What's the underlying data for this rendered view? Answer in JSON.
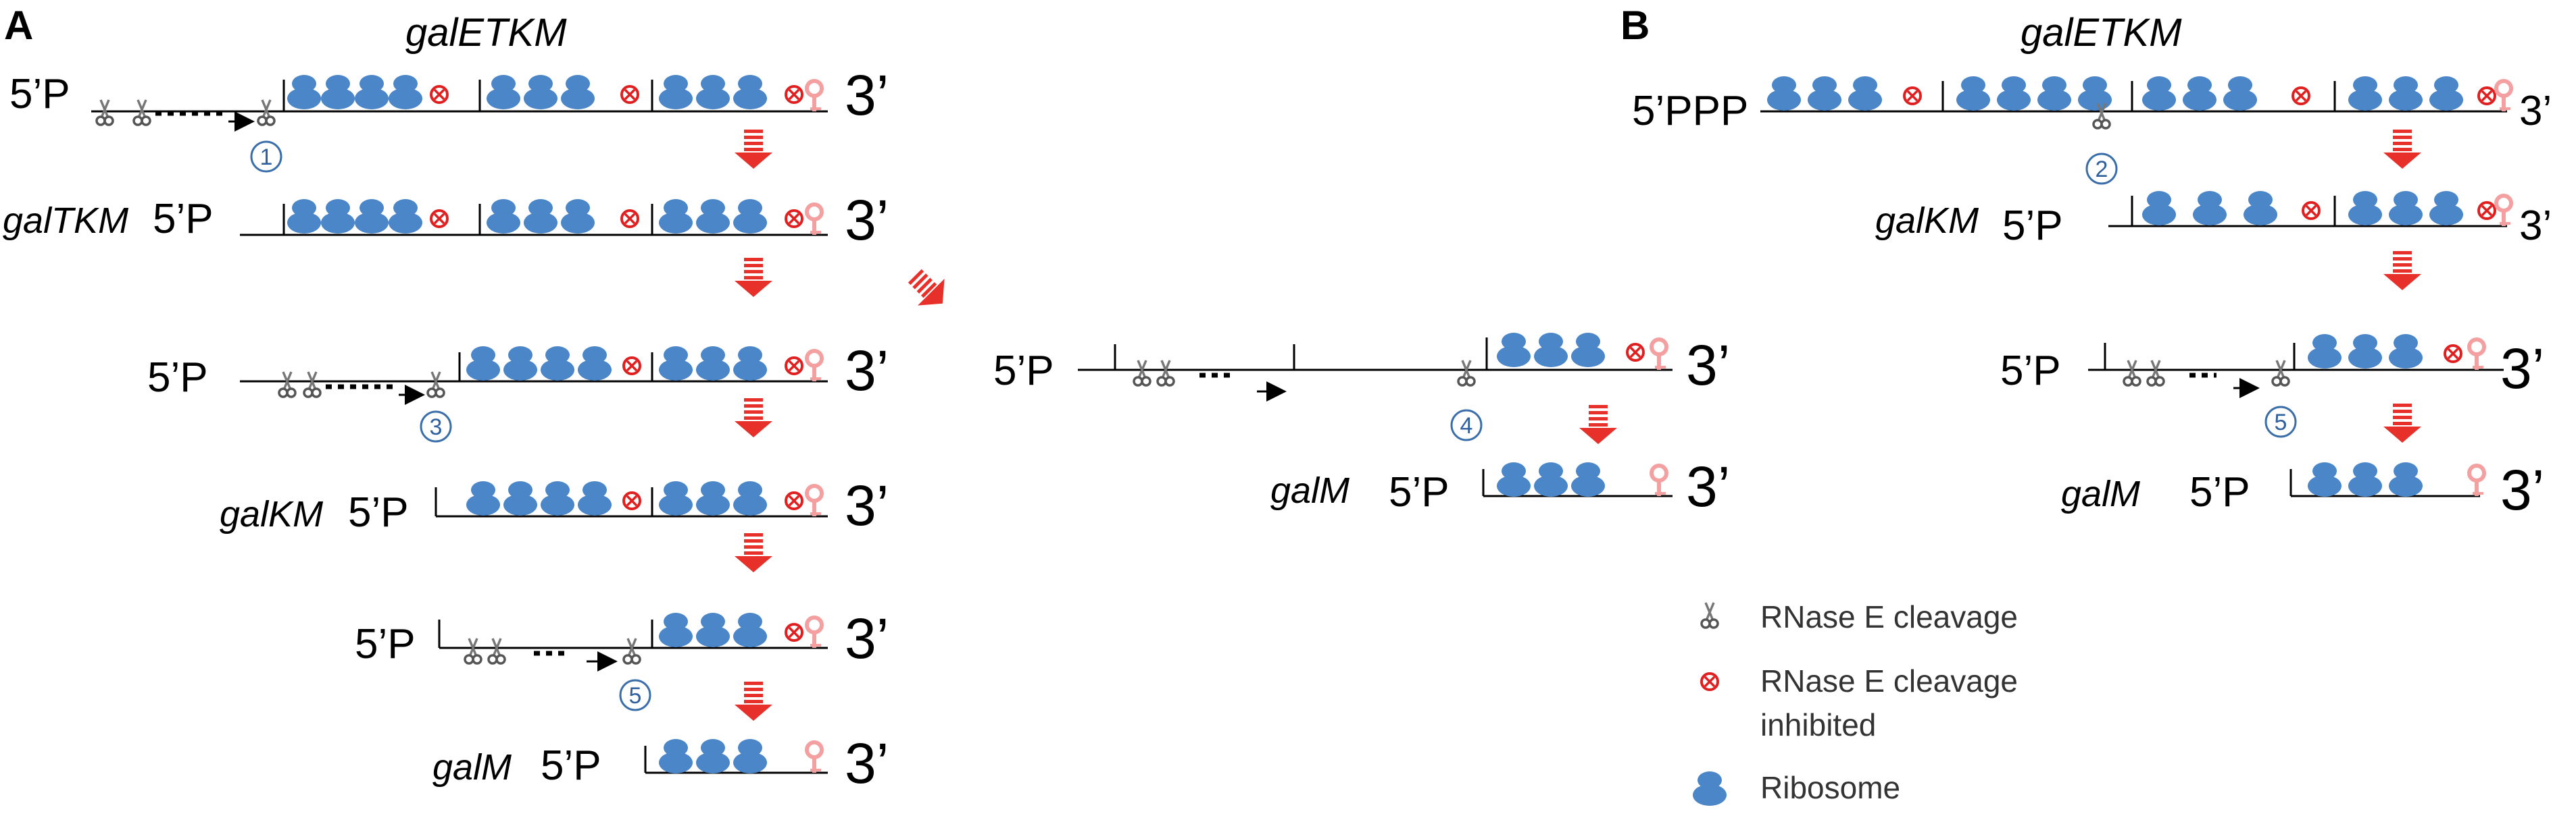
{
  "panels": {
    "a": "A",
    "b": "B"
  },
  "labels": {
    "galETKM": "galETKM",
    "galTKM": "galTKM",
    "galKM": "galKM",
    "galM": "galM",
    "p5": "5’P",
    "ppp5": "5’PPP",
    "end3": "3’"
  },
  "sites": {
    "s1": "1",
    "s2": "2",
    "s3": "3",
    "s4": "4",
    "s5": "5"
  },
  "legend": {
    "cleavage": "RNase E cleavage",
    "inhibited_line1": "RNase E cleavage",
    "inhibited_line2": "inhibited",
    "ribosome": "Ribosome"
  },
  "colors": {
    "ribosome": "#4a86c8",
    "inhibit": "#e02020",
    "arrow": "#e8302a",
    "terminator": "#f4a0a0",
    "site_circle": "#3a6ea8"
  },
  "icons": {
    "cleavage": "scissors-icon",
    "inhibited": "circled-x-icon",
    "ribosome": "ribosome-icon",
    "terminator": "terminator-hairpin-icon",
    "step": "red-down-arrow-icon"
  }
}
